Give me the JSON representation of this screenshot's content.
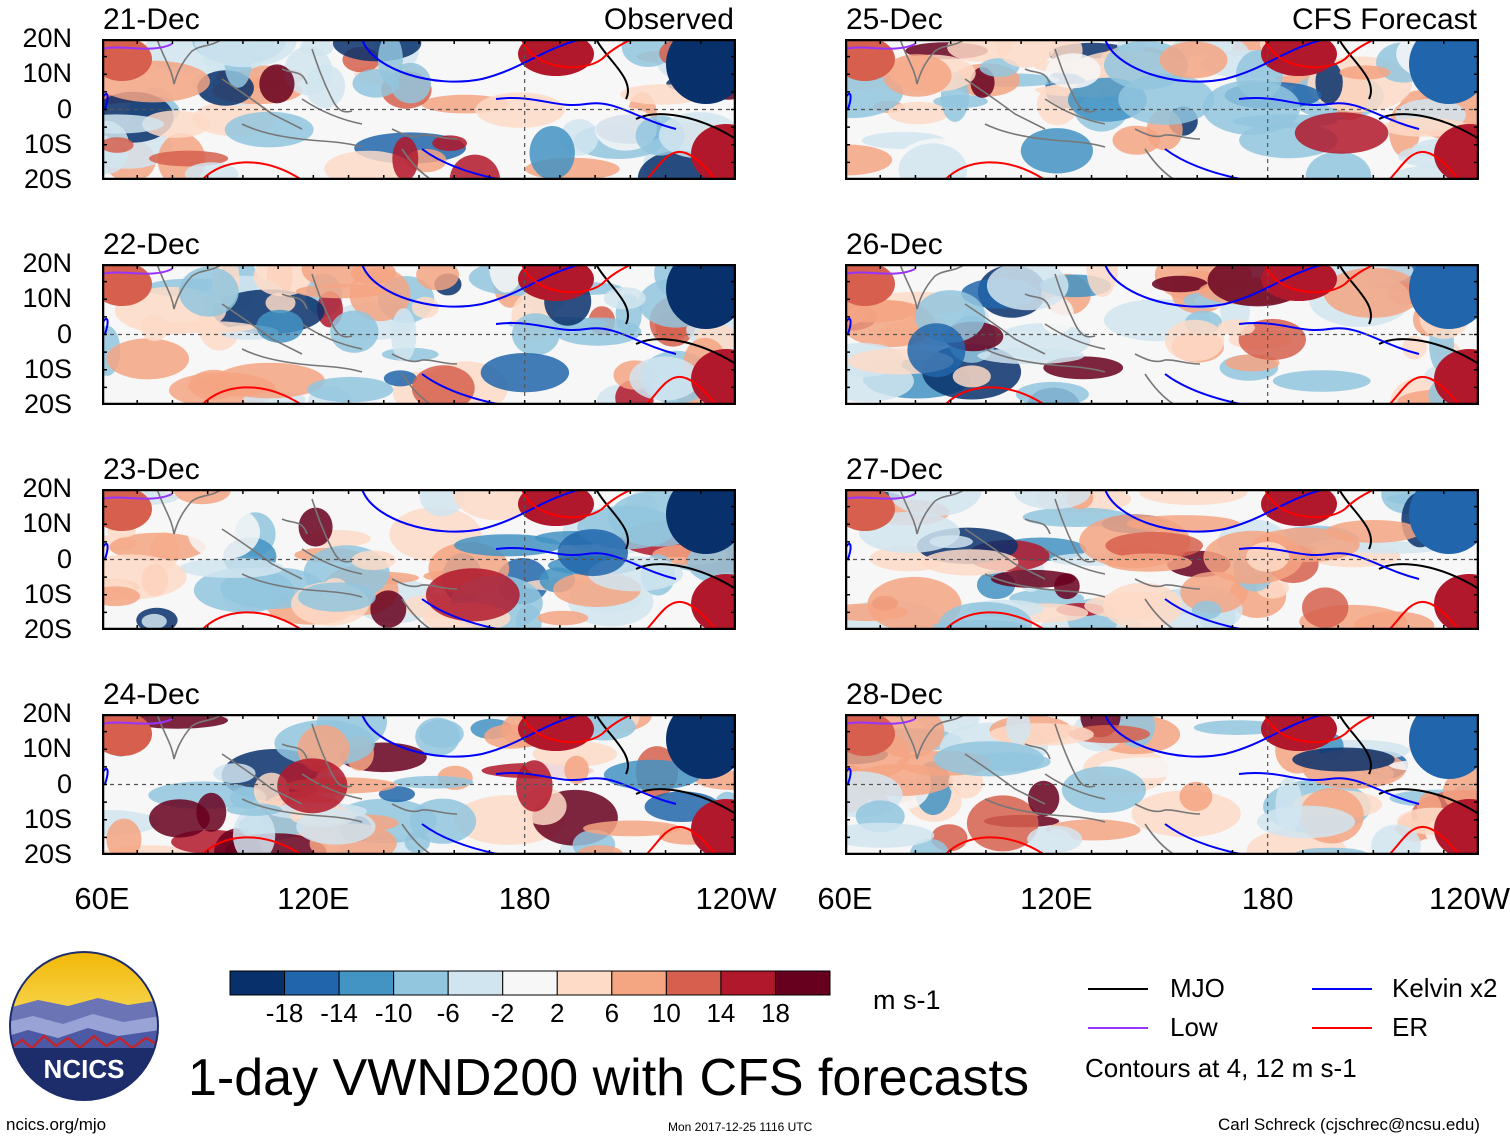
{
  "chart_data": {
    "type": "heatmap",
    "title": "1-day VWND200 with CFS forecasts",
    "variable": "VWND200",
    "units": "m s-1",
    "columns": [
      {
        "heading": "Observed",
        "dates": [
          "21-Dec",
          "22-Dec",
          "23-Dec",
          "24-Dec"
        ]
      },
      {
        "heading": "CFS Forecast",
        "dates": [
          "25-Dec",
          "26-Dec",
          "27-Dec",
          "28-Dec"
        ]
      }
    ],
    "lat_ticks": [
      "20N",
      "10N",
      "0",
      "10S",
      "20S"
    ],
    "lat_range": [
      -20,
      20
    ],
    "lon_ticks": [
      "60E",
      "120E",
      "180",
      "120W"
    ],
    "lon_range": [
      60,
      240
    ],
    "colorbar": {
      "ticks": [
        "-18",
        "-14",
        "-10",
        "-6",
        "-2",
        "2",
        "6",
        "10",
        "14",
        "18"
      ],
      "colors": [
        "#08306b",
        "#2166ac",
        "#4393c3",
        "#92c5de",
        "#d1e5f0",
        "#f7f7f7",
        "#fddbc7",
        "#f4a582",
        "#d6604d",
        "#b2182b",
        "#67001f"
      ]
    },
    "contours": {
      "note": "Contours at 4, 12 m s-1",
      "levels": [
        4,
        12
      ],
      "legend": [
        {
          "name": "MJO",
          "color": "#000000"
        },
        {
          "name": "Low",
          "color": "#9933ff"
        },
        {
          "name": "Kelvin x2",
          "color": "#0000ff"
        },
        {
          "name": "ER",
          "color": "#ff0000"
        }
      ]
    }
  },
  "footer": {
    "logo_text": "NCICS",
    "site": "ncics.org/mjo",
    "timestamp": "Mon 2017-12-25 1116 UTC",
    "credit": "Carl Schreck (cjschrec@ncsu.edu)"
  }
}
